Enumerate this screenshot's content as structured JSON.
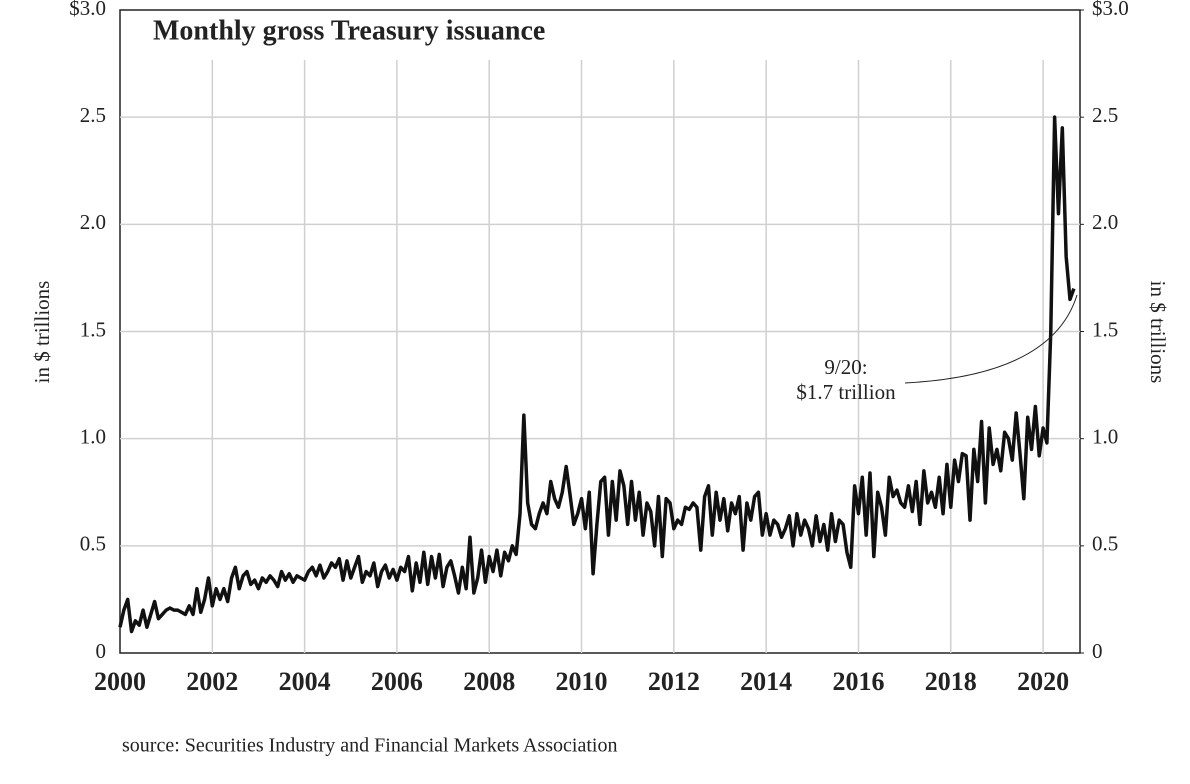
{
  "chart_data": {
    "type": "line",
    "title": "Monthly gross Treasury issuance",
    "ylabel": "in $ trillions",
    "y2label": "in $ trillions",
    "annotation": [
      "9/20:",
      "$1.7 trillion"
    ],
    "source": "source: Securities Industry and Financial Markets Association",
    "color": "#111111",
    "grid": true,
    "xlim": [
      2000,
      2020.8
    ],
    "xticks": [
      2000,
      2002,
      2004,
      2006,
      2008,
      2010,
      2012,
      2014,
      2016,
      2018,
      2020
    ],
    "ylim": [
      0,
      3
    ],
    "yticks": [
      0,
      0.5,
      {
        "value": 1,
        "label": "1.0"
      },
      1.5,
      {
        "value": 2,
        "label": "2.0"
      },
      2.5,
      {
        "value": 3,
        "label": "$3.0"
      }
    ],
    "y2lim": [
      0,
      3
    ],
    "y2ticks": [
      0,
      0.5,
      {
        "value": 1,
        "label": "1.0"
      },
      1.5,
      {
        "value": 2,
        "label": "2.0"
      },
      2.5,
      {
        "value": 3,
        "label": "$3.0"
      }
    ],
    "x": [
      2000,
      2000.083,
      2000.167,
      2000.25,
      2000.333,
      2000.417,
      2000.5,
      2000.583,
      2000.667,
      2000.75,
      2000.833,
      2000.917,
      2001,
      2001.083,
      2001.167,
      2001.25,
      2001.333,
      2001.417,
      2001.5,
      2001.583,
      2001.667,
      2001.75,
      2001.833,
      2001.917,
      2002,
      2002.083,
      2002.167,
      2002.25,
      2002.333,
      2002.417,
      2002.5,
      2002.583,
      2002.667,
      2002.75,
      2002.833,
      2002.917,
      2003,
      2003.083,
      2003.167,
      2003.25,
      2003.333,
      2003.417,
      2003.5,
      2003.583,
      2003.667,
      2003.75,
      2003.833,
      2003.917,
      2004,
      2004.083,
      2004.167,
      2004.25,
      2004.333,
      2004.417,
      2004.5,
      2004.583,
      2004.667,
      2004.75,
      2004.833,
      2004.917,
      2005,
      2005.083,
      2005.167,
      2005.25,
      2005.333,
      2005.417,
      2005.5,
      2005.583,
      2005.667,
      2005.75,
      2005.833,
      2005.917,
      2006,
      2006.083,
      2006.167,
      2006.25,
      2006.333,
      2006.417,
      2006.5,
      2006.583,
      2006.667,
      2006.75,
      2006.833,
      2006.917,
      2007,
      2007.083,
      2007.167,
      2007.25,
      2007.333,
      2007.417,
      2007.5,
      2007.583,
      2007.667,
      2007.75,
      2007.833,
      2007.917,
      2008,
      2008.083,
      2008.167,
      2008.25,
      2008.333,
      2008.417,
      2008.5,
      2008.583,
      2008.667,
      2008.75,
      2008.833,
      2008.917,
      2009,
      2009.083,
      2009.167,
      2009.25,
      2009.333,
      2009.417,
      2009.5,
      2009.583,
      2009.667,
      2009.75,
      2009.833,
      2009.917,
      2010,
      2010.083,
      2010.167,
      2010.25,
      2010.333,
      2010.417,
      2010.5,
      2010.583,
      2010.667,
      2010.75,
      2010.833,
      2010.917,
      2011,
      2011.083,
      2011.167,
      2011.25,
      2011.333,
      2011.417,
      2011.5,
      2011.583,
      2011.667,
      2011.75,
      2011.833,
      2011.917,
      2012,
      2012.083,
      2012.167,
      2012.25,
      2012.333,
      2012.417,
      2012.5,
      2012.583,
      2012.667,
      2012.75,
      2012.833,
      2012.917,
      2013,
      2013.083,
      2013.167,
      2013.25,
      2013.333,
      2013.417,
      2013.5,
      2013.583,
      2013.667,
      2013.75,
      2013.833,
      2013.917,
      2014,
      2014.083,
      2014.167,
      2014.25,
      2014.333,
      2014.417,
      2014.5,
      2014.583,
      2014.667,
      2014.75,
      2014.833,
      2014.917,
      2015,
      2015.083,
      2015.167,
      2015.25,
      2015.333,
      2015.417,
      2015.5,
      2015.583,
      2015.667,
      2015.75,
      2015.833,
      2015.917,
      2016,
      2016.083,
      2016.167,
      2016.25,
      2016.333,
      2016.417,
      2016.5,
      2016.583,
      2016.667,
      2016.75,
      2016.833,
      2016.917,
      2017,
      2017.083,
      2017.167,
      2017.25,
      2017.333,
      2017.417,
      2017.5,
      2017.583,
      2017.667,
      2017.75,
      2017.833,
      2017.917,
      2018,
      2018.083,
      2018.167,
      2018.25,
      2018.333,
      2018.417,
      2018.5,
      2018.583,
      2018.667,
      2018.75,
      2018.833,
      2018.917,
      2019,
      2019.083,
      2019.167,
      2019.25,
      2019.333,
      2019.417,
      2019.5,
      2019.583,
      2019.667,
      2019.75,
      2019.833,
      2019.917,
      2020,
      2020.083,
      2020.167,
      2020.25,
      2020.333,
      2020.417,
      2020.5,
      2020.583,
      2020.667
    ],
    "values": [
      0.12,
      0.2,
      0.25,
      0.1,
      0.15,
      0.13,
      0.2,
      0.12,
      0.18,
      0.24,
      0.16,
      0.18,
      0.2,
      0.21,
      0.2,
      0.2,
      0.19,
      0.18,
      0.22,
      0.18,
      0.3,
      0.19,
      0.25,
      0.35,
      0.22,
      0.3,
      0.25,
      0.3,
      0.24,
      0.35,
      0.4,
      0.3,
      0.36,
      0.38,
      0.32,
      0.34,
      0.3,
      0.35,
      0.33,
      0.36,
      0.34,
      0.31,
      0.38,
      0.34,
      0.37,
      0.33,
      0.36,
      0.35,
      0.34,
      0.38,
      0.4,
      0.36,
      0.41,
      0.35,
      0.38,
      0.42,
      0.4,
      0.44,
      0.34,
      0.43,
      0.35,
      0.4,
      0.45,
      0.33,
      0.38,
      0.36,
      0.42,
      0.31,
      0.38,
      0.41,
      0.35,
      0.39,
      0.34,
      0.4,
      0.38,
      0.45,
      0.29,
      0.42,
      0.33,
      0.47,
      0.32,
      0.45,
      0.35,
      0.46,
      0.31,
      0.4,
      0.43,
      0.36,
      0.28,
      0.4,
      0.3,
      0.54,
      0.28,
      0.35,
      0.48,
      0.33,
      0.45,
      0.38,
      0.48,
      0.36,
      0.47,
      0.43,
      0.5,
      0.46,
      0.65,
      1.11,
      0.7,
      0.6,
      0.58,
      0.65,
      0.7,
      0.65,
      0.8,
      0.72,
      0.68,
      0.75,
      0.87,
      0.74,
      0.6,
      0.65,
      0.72,
      0.58,
      0.75,
      0.37,
      0.6,
      0.8,
      0.82,
      0.55,
      0.8,
      0.62,
      0.85,
      0.78,
      0.6,
      0.8,
      0.62,
      0.75,
      0.55,
      0.7,
      0.66,
      0.5,
      0.73,
      0.45,
      0.72,
      0.7,
      0.58,
      0.62,
      0.6,
      0.68,
      0.67,
      0.7,
      0.68,
      0.48,
      0.73,
      0.78,
      0.55,
      0.75,
      0.62,
      0.72,
      0.57,
      0.7,
      0.65,
      0.73,
      0.48,
      0.7,
      0.62,
      0.73,
      0.75,
      0.55,
      0.65,
      0.55,
      0.62,
      0.6,
      0.54,
      0.58,
      0.64,
      0.5,
      0.65,
      0.55,
      0.62,
      0.58,
      0.5,
      0.64,
      0.52,
      0.6,
      0.48,
      0.65,
      0.52,
      0.62,
      0.6,
      0.47,
      0.4,
      0.78,
      0.65,
      0.82,
      0.55,
      0.84,
      0.45,
      0.75,
      0.68,
      0.55,
      0.82,
      0.73,
      0.76,
      0.7,
      0.68,
      0.78,
      0.66,
      0.8,
      0.6,
      0.85,
      0.7,
      0.75,
      0.68,
      0.82,
      0.65,
      0.88,
      0.68,
      0.9,
      0.8,
      0.93,
      0.92,
      0.62,
      0.95,
      0.8,
      1.08,
      0.7,
      1.05,
      0.88,
      0.95,
      0.85,
      1.03,
      1.0,
      0.9,
      1.12,
      0.93,
      0.72,
      1.1,
      0.95,
      1.15,
      0.92,
      1.05,
      0.98,
      1.5,
      2.5,
      2.05,
      2.45,
      1.85,
      1.65,
      1.7
    ]
  }
}
